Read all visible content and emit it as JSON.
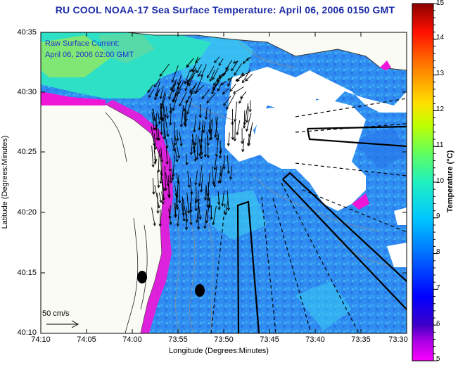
{
  "title": "RU COOL  NOAA-17 Sea Surface Temperature:  April 06, 2006 0150 GMT",
  "current_label": "Raw Surface Current:",
  "current_time": "April 06, 2006 02:00 GMT",
  "scale_label": "50 cm/s",
  "xaxis": {
    "label": "Longitude (Degrees:Minutes)",
    "ticks": [
      "74:10",
      "74:05",
      "74:00",
      "73:55",
      "73:50",
      "73:45",
      "73:40",
      "73:35",
      "73:30"
    ]
  },
  "yaxis": {
    "label": "Latitude (Degrees:Minutes)",
    "ticks": [
      "40:35",
      "40:30",
      "40:25",
      "40:20",
      "40:15",
      "40:10"
    ]
  },
  "colorbar": {
    "label": "Temperature (°C)",
    "ticks": [
      "15",
      "14",
      "13",
      "12",
      "11",
      "10",
      "9",
      "8",
      "7",
      "6",
      "5"
    ],
    "colors": [
      "#ff00ff",
      "#3e00c8",
      "#0000ff",
      "#0088ff",
      "#00d0ff",
      "#20ff90",
      "#a0ff00",
      "#ffe000",
      "#ff8000",
      "#ff0000",
      "#8b0000"
    ]
  },
  "colors": {
    "land": "#fbfbf5",
    "sst_main": "#2f8cf0",
    "sst_light": "#39c6f2",
    "sst_warm": "#2de0c6",
    "cold_edge": "#f016d8",
    "title": "#1b2aa6"
  }
}
